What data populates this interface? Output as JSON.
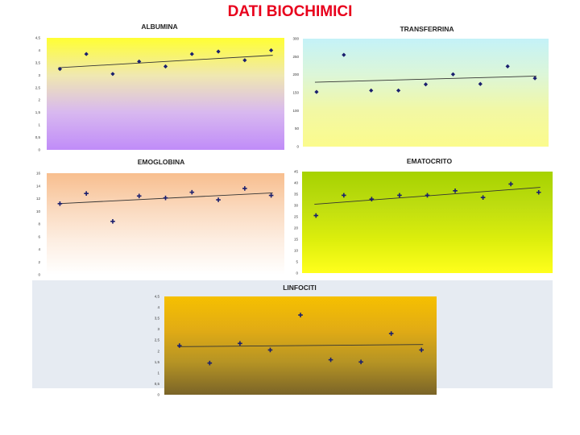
{
  "page": {
    "title": "DATI BIOCHIMICI"
  },
  "chart_data": [
    {
      "id": "albumina",
      "type": "scatter",
      "title": "ALBUMINA",
      "ylim": [
        0,
        4.5
      ],
      "yticks": [
        "0",
        "0,5",
        "1",
        "1,5",
        "2",
        "2,5",
        "3",
        "3,5",
        "4",
        "4,5"
      ],
      "values": [
        3.25,
        3.85,
        3.05,
        3.55,
        3.35,
        3.85,
        3.95,
        3.6,
        4.0
      ],
      "trend": [
        3.3,
        3.8
      ],
      "marker": "diamond",
      "gradient": [
        "#ffff33",
        "#f0e8b0",
        "#d8b8f0",
        "#c08cf8"
      ]
    },
    {
      "id": "transferrina",
      "type": "scatter",
      "title": "TRANSFERRINA",
      "ylim": [
        0,
        300
      ],
      "yticks": [
        "0",
        "50",
        "100",
        "150",
        "200",
        "250",
        "300"
      ],
      "values": [
        152,
        255,
        156,
        156,
        173,
        201,
        174,
        223,
        190
      ],
      "trend": [
        179,
        196
      ],
      "marker": "diamond",
      "gradient": [
        "#c4f2f8",
        "#dcf6d8",
        "#f2f8a4",
        "#fbfb8c"
      ]
    },
    {
      "id": "emoglobina",
      "type": "scatter",
      "title": "EMOGLOBINA",
      "ylim": [
        0,
        16
      ],
      "yticks": [
        "0",
        "2",
        "4",
        "6",
        "8",
        "10",
        "12",
        "14",
        "16"
      ],
      "values": [
        11.2,
        12.8,
        8.4,
        12.4,
        12.1,
        13.0,
        11.8,
        13.6,
        12.5
      ],
      "trend": [
        11.2,
        12.9
      ],
      "marker": "cross",
      "gradient": [
        "#f8be8e",
        "#fad8bc",
        "#fdeee2",
        "#ffffff"
      ]
    },
    {
      "id": "ematocrito",
      "type": "scatter",
      "title": "EMATOCRITO",
      "ylim": [
        0,
        45
      ],
      "yticks": [
        "0",
        "5",
        "10",
        "15",
        "20",
        "25",
        "30",
        "35",
        "40",
        "45"
      ],
      "values": [
        25.5,
        34.5,
        32.8,
        34.5,
        34.5,
        36.5,
        33.5,
        39.5,
        35.8
      ],
      "trend": [
        30.5,
        38.0
      ],
      "marker": "cross",
      "gradient": [
        "#a6d200",
        "#bedd10",
        "#dcee0c",
        "#ffff1c"
      ]
    },
    {
      "id": "linfociti",
      "type": "scatter",
      "title": "LINFOCITI",
      "ylim": [
        0,
        4.5
      ],
      "yticks": [
        "0",
        "0,5",
        "1",
        "1,5",
        "2",
        "2,5",
        "3",
        "3,5",
        "4",
        "4,5"
      ],
      "values": [
        2.25,
        1.45,
        2.35,
        2.05,
        3.65,
        1.6,
        1.5,
        2.8,
        2.05
      ],
      "trend": [
        2.2,
        2.3
      ],
      "marker": "cross",
      "gradient": [
        "#f6c000",
        "#e2ac14",
        "#b69424",
        "#7a6428"
      ]
    }
  ]
}
